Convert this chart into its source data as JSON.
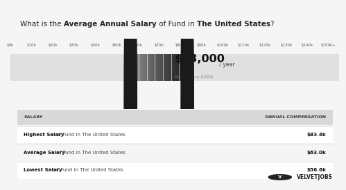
{
  "title_plain": "What is the ",
  "title_bold1": "Average Annual Salary",
  "title_mid": " of Fund in ",
  "title_bold2": "The United States",
  "title_end": "?",
  "main_salary": "$63,000",
  "main_salary_suffix": " / year",
  "avg_label": "Avg. Salary (USD)",
  "tick_labels": [
    "$0k",
    "$10k",
    "$20k",
    "$30k",
    "$40k",
    "$50k",
    "$60k",
    "$70k",
    "$80k",
    "$90k",
    "$100k",
    "$110k",
    "$120k",
    "$130k",
    "$140k",
    "$150k+"
  ],
  "bar_low": 56.6,
  "bar_high": 83.4,
  "bar_avg": 63.0,
  "x_max": 155,
  "salary_marker_low": 56.6,
  "salary_marker_high": 83.4,
  "bg_color": "#f5f5f5",
  "header_bg": "#efefef",
  "bar_bg_color": "#e0e0e0",
  "bar_gradient_start": "#888888",
  "bar_gradient_end": "#111111",
  "table_header_bg": "#d8d8d8",
  "table_row1_bg": "#ffffff",
  "table_row2_bg": "#f5f5f5",
  "table_rows": [
    {
      "label_bold": "Highest Salary",
      "label_rest": " of Fund in The United States",
      "value": "$83.4k"
    },
    {
      "label_bold": "Average Salary",
      "label_rest": " of Fund in The United States",
      "value": "$63.0k"
    },
    {
      "label_bold": "Lowest Salary",
      "label_rest": " of Fund in The United States",
      "value": "$56.6k"
    }
  ],
  "velvetjobs_text": "VELVETJOBS",
  "logo_color": "#222222",
  "line_color": "#cccccc"
}
